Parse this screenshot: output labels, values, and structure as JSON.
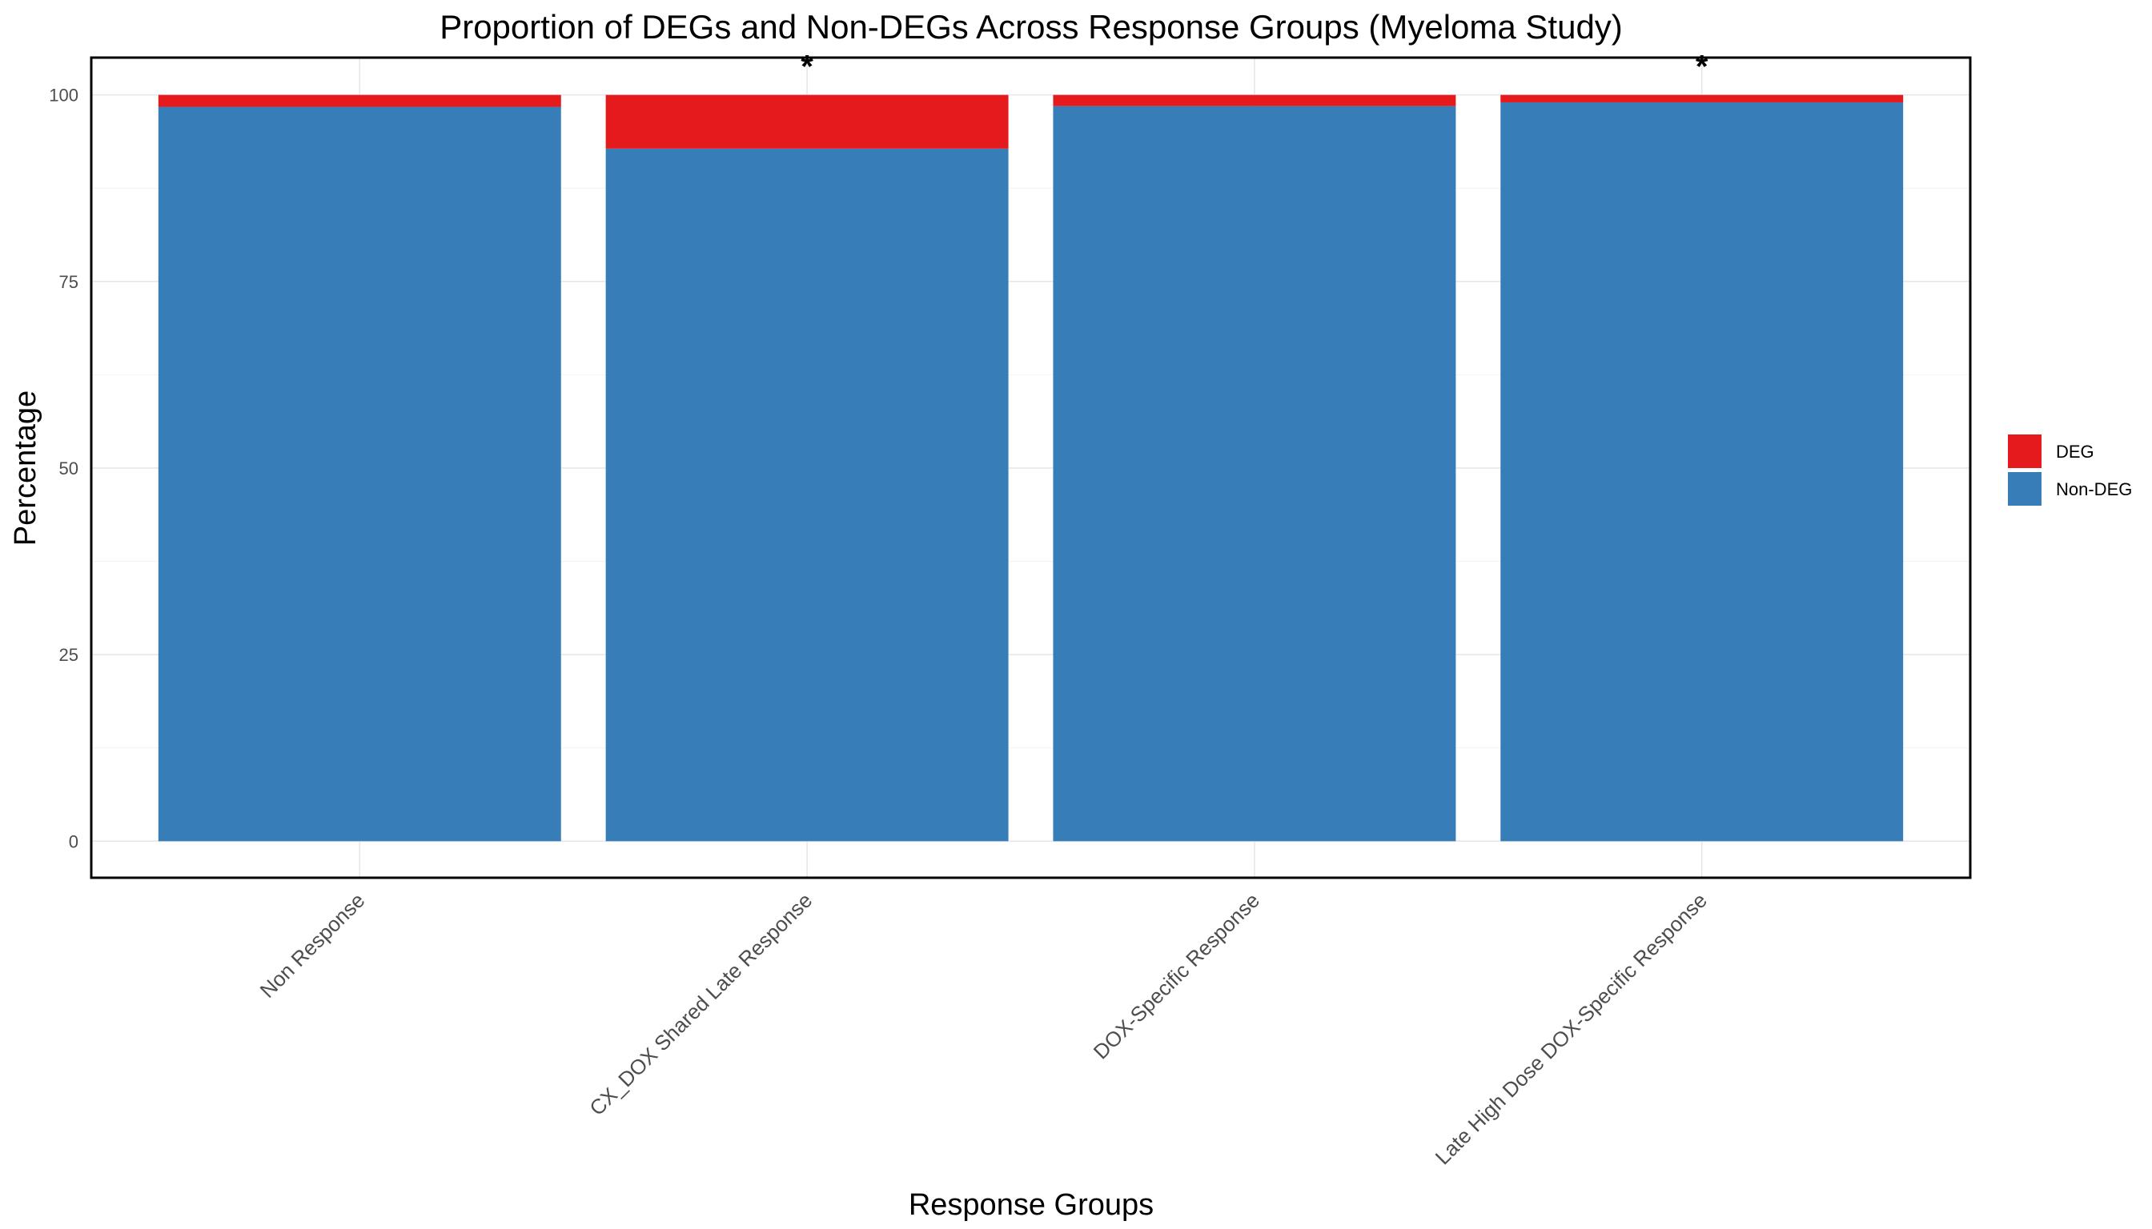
{
  "chart_data": {
    "type": "bar",
    "stacked": true,
    "title": "Proportion of DEGs and Non-DEGs Across Response Groups (Myeloma Study)",
    "xlabel": "Response Groups",
    "ylabel": "Percentage",
    "categories": [
      "Non Response",
      "CX_DOX Shared Late Response",
      "DOX-Specific Response",
      "Late High Dose DOX-Specific Response"
    ],
    "series": [
      {
        "name": "Non-DEG",
        "color": "#377eb8",
        "values": [
          98.4,
          92.8,
          98.5,
          99.0
        ]
      },
      {
        "name": "DEG",
        "color": "#e41a1c",
        "values": [
          1.6,
          7.2,
          1.5,
          1.0
        ]
      }
    ],
    "legend_order": [
      "DEG",
      "Non-DEG"
    ],
    "annotations": [
      {
        "category": "CX_DOX Shared Late Response",
        "text": "*"
      },
      {
        "category": "Late High Dose DOX-Specific Response",
        "text": "*"
      }
    ],
    "yticks": [
      0,
      25,
      50,
      75,
      100
    ],
    "ylim": [
      -4.9,
      105
    ],
    "grid": true,
    "legend_position": "right"
  }
}
